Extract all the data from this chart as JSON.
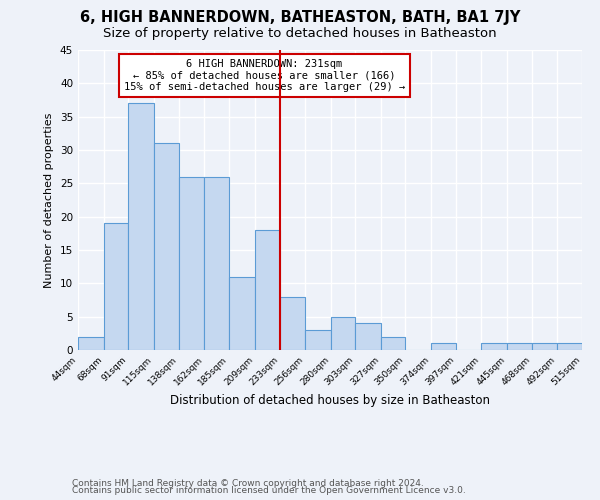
{
  "title": "6, HIGH BANNERDOWN, BATHEASTON, BATH, BA1 7JY",
  "subtitle": "Size of property relative to detached houses in Batheaston",
  "xlabel": "Distribution of detached houses by size in Batheaston",
  "ylabel": "Number of detached properties",
  "footnote1": "Contains HM Land Registry data © Crown copyright and database right 2024.",
  "footnote2": "Contains public sector information licensed under the Open Government Licence v3.0.",
  "bin_edges": [
    44,
    68,
    91,
    115,
    138,
    162,
    185,
    209,
    233,
    256,
    280,
    303,
    327,
    350,
    374,
    397,
    421,
    445,
    468,
    492,
    515
  ],
  "bar_heights": [
    2,
    19,
    37,
    31,
    26,
    26,
    11,
    18,
    8,
    3,
    5,
    4,
    2,
    0,
    1,
    0,
    1,
    1,
    1,
    1
  ],
  "tick_labels": [
    "44sqm",
    "68sqm",
    "91sqm",
    "115sqm",
    "138sqm",
    "162sqm",
    "185sqm",
    "209sqm",
    "233sqm",
    "256sqm",
    "280sqm",
    "303sqm",
    "327sqm",
    "350sqm",
    "374sqm",
    "397sqm",
    "421sqm",
    "445sqm",
    "468sqm",
    "492sqm",
    "515sqm"
  ],
  "bar_color": "#c5d8f0",
  "bar_edge_color": "#5b9bd5",
  "vline_x": 233,
  "vline_color": "#cc0000",
  "annotation_title": "6 HIGH BANNERDOWN: 231sqm",
  "annotation_line1": "← 85% of detached houses are smaller (166)",
  "annotation_line2": "15% of semi-detached houses are larger (29) →",
  "annotation_box_color": "#cc0000",
  "ylim": [
    0,
    45
  ],
  "yticks": [
    0,
    5,
    10,
    15,
    20,
    25,
    30,
    35,
    40,
    45
  ],
  "background_color": "#eef2f9",
  "grid_color": "#ffffff",
  "title_fontsize": 10.5,
  "subtitle_fontsize": 9.5,
  "footnote_fontsize": 6.5
}
